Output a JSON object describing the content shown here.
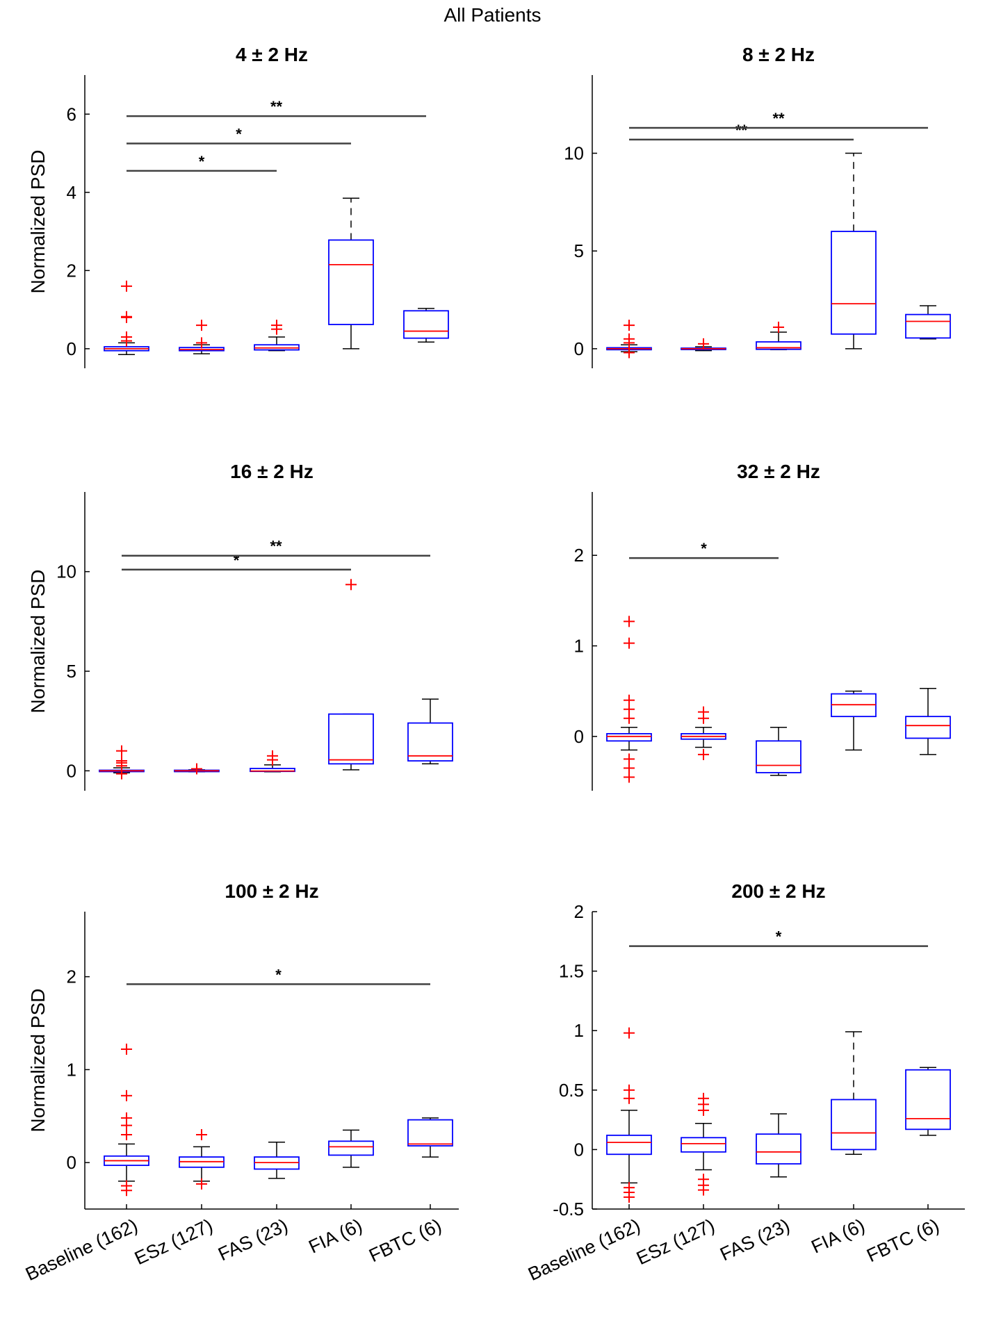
{
  "figure": {
    "title": "All Patients"
  },
  "chart_data": [
    {
      "type": "box",
      "title": "4 ± 2 Hz",
      "ylabel": "Normalized PSD",
      "ylim": [
        -0.5,
        7.0
      ],
      "yticks": [
        0,
        2,
        4,
        6
      ],
      "categories": [
        "Baseline (162)",
        "ESz (127)",
        "FAS (23)",
        "FIA (6)",
        "FBTC (6)"
      ],
      "boxes": [
        {
          "q1": -0.05,
          "median": 0.0,
          "q3": 0.05,
          "wlo": -0.15,
          "whi": 0.15,
          "outliers": [
            0.2,
            0.3,
            0.8,
            0.82,
            1.6
          ]
        },
        {
          "q1": -0.05,
          "median": -0.02,
          "q3": 0.03,
          "wlo": -0.13,
          "whi": 0.1,
          "outliers": [
            0.15,
            0.6
          ]
        },
        {
          "q1": -0.03,
          "median": 0.02,
          "q3": 0.1,
          "wlo": -0.05,
          "whi": 0.3,
          "outliers": [
            0.5,
            0.6
          ]
        },
        {
          "q1": 0.62,
          "median": 2.15,
          "q3": 2.78,
          "wlo": 0.0,
          "whi": 3.85,
          "outliers": []
        },
        {
          "q1": 0.27,
          "median": 0.45,
          "q3": 0.97,
          "wlo": 0.17,
          "whi": 1.03,
          "outliers": []
        }
      ],
      "significance": [
        {
          "from": 0,
          "to": 2,
          "y": 4.55,
          "label": "*"
        },
        {
          "from": 0,
          "to": 3,
          "y": 5.25,
          "label": "*"
        },
        {
          "from": 0,
          "to": 4,
          "y": 5.95,
          "label": "**"
        }
      ]
    },
    {
      "type": "box",
      "title": "8 ± 2 Hz",
      "ylabel": "",
      "ylim": [
        -1.0,
        14.0
      ],
      "yticks": [
        0,
        5,
        10
      ],
      "categories": [
        "Baseline (162)",
        "ESz (127)",
        "FAS (23)",
        "FIA (6)",
        "FBTC (6)"
      ],
      "boxes": [
        {
          "q1": -0.05,
          "median": 0.0,
          "q3": 0.05,
          "wlo": -0.15,
          "whi": 0.2,
          "outliers": [
            -0.2,
            0.3,
            0.5,
            1.2
          ]
        },
        {
          "q1": -0.03,
          "median": 0.0,
          "q3": 0.03,
          "wlo": -0.1,
          "whi": 0.1,
          "outliers": [
            0.25
          ]
        },
        {
          "q1": -0.03,
          "median": 0.05,
          "q3": 0.35,
          "wlo": -0.05,
          "whi": 0.85,
          "outliers": [
            1.1
          ]
        },
        {
          "q1": 0.75,
          "median": 2.3,
          "q3": 6.0,
          "wlo": 0.0,
          "whi": 10.0,
          "outliers": []
        },
        {
          "q1": 0.55,
          "median": 1.4,
          "q3": 1.75,
          "wlo": 0.5,
          "whi": 2.2,
          "outliers": []
        }
      ],
      "significance": [
        {
          "from": 0,
          "to": 3,
          "y": 10.7,
          "label": "**"
        },
        {
          "from": 0,
          "to": 4,
          "y": 11.3,
          "label": "**"
        }
      ]
    },
    {
      "type": "box",
      "title": "16 ± 2 Hz",
      "ylabel": "Normalized PSD",
      "ylim": [
        -1.0,
        14.0
      ],
      "yticks": [
        0,
        5,
        10
      ],
      "categories": [
        "Baseline (162)",
        "ESz (127)",
        "FAS (23)",
        "FIA (6)",
        "FBTC (6)"
      ],
      "boxes": [
        {
          "q1": -0.03,
          "median": 0.0,
          "q3": 0.03,
          "wlo": -0.1,
          "whi": 0.15,
          "outliers": [
            0.25,
            0.4,
            0.5,
            1.0,
            -0.15
          ]
        },
        {
          "q1": -0.03,
          "median": 0.0,
          "q3": 0.03,
          "wlo": -0.05,
          "whi": 0.05,
          "outliers": [
            0.1
          ]
        },
        {
          "q1": -0.03,
          "median": -0.01,
          "q3": 0.12,
          "wlo": -0.05,
          "whi": 0.3,
          "outliers": [
            0.55,
            0.75
          ]
        },
        {
          "q1": 0.35,
          "median": 0.55,
          "q3": 2.85,
          "wlo": 0.05,
          "whi": 2.85,
          "outliers": [
            9.35
          ]
        },
        {
          "q1": 0.5,
          "median": 0.75,
          "q3": 2.4,
          "wlo": 0.35,
          "whi": 3.6,
          "outliers": []
        }
      ],
      "significance": [
        {
          "from": 0,
          "to": 3,
          "y": 10.1,
          "label": "*"
        },
        {
          "from": 0,
          "to": 4,
          "y": 10.8,
          "label": "**"
        }
      ]
    },
    {
      "type": "box",
      "title": "32 ± 2 Hz",
      "ylabel": "",
      "ylim": [
        -0.6,
        2.7
      ],
      "yticks": [
        0,
        1,
        2
      ],
      "categories": [
        "Baseline (162)",
        "ESz (127)",
        "FAS (23)",
        "FIA (6)",
        "FBTC (6)"
      ],
      "boxes": [
        {
          "q1": -0.05,
          "median": 0.0,
          "q3": 0.03,
          "wlo": -0.15,
          "whi": 0.1,
          "outliers": [
            0.2,
            0.3,
            0.4,
            1.03,
            1.27,
            -0.25,
            -0.35,
            -0.45
          ]
        },
        {
          "q1": -0.03,
          "median": 0.0,
          "q3": 0.03,
          "wlo": -0.12,
          "whi": 0.1,
          "outliers": [
            0.2,
            0.27,
            -0.2
          ]
        },
        {
          "q1": -0.4,
          "median": -0.32,
          "q3": -0.05,
          "wlo": -0.43,
          "whi": 0.1,
          "outliers": []
        },
        {
          "q1": 0.22,
          "median": 0.35,
          "q3": 0.47,
          "wlo": -0.15,
          "whi": 0.5,
          "outliers": []
        },
        {
          "q1": -0.02,
          "median": 0.12,
          "q3": 0.22,
          "wlo": -0.2,
          "whi": 0.53,
          "outliers": []
        }
      ],
      "significance": [
        {
          "from": 0,
          "to": 2,
          "y": 1.97,
          "label": "*"
        }
      ]
    },
    {
      "type": "box",
      "title": "100 ± 2 Hz",
      "ylabel": "Normalized PSD",
      "ylim": [
        -0.5,
        2.7
      ],
      "yticks": [
        0,
        1,
        2
      ],
      "categories": [
        "Baseline (162)",
        "ESz (127)",
        "FAS (23)",
        "FIA (6)",
        "FBTC (6)"
      ],
      "boxes": [
        {
          "q1": -0.03,
          "median": 0.02,
          "q3": 0.07,
          "wlo": -0.2,
          "whi": 0.2,
          "outliers": [
            0.3,
            0.4,
            0.48,
            0.72,
            1.22,
            -0.25,
            -0.3
          ]
        },
        {
          "q1": -0.05,
          "median": 0.01,
          "q3": 0.06,
          "wlo": -0.2,
          "whi": 0.17,
          "outliers": [
            0.3,
            -0.23
          ]
        },
        {
          "q1": -0.07,
          "median": 0.0,
          "q3": 0.06,
          "wlo": -0.17,
          "whi": 0.22,
          "outliers": []
        },
        {
          "q1": 0.08,
          "median": 0.17,
          "q3": 0.23,
          "wlo": -0.05,
          "whi": 0.35,
          "outliers": []
        },
        {
          "q1": 0.18,
          "median": 0.2,
          "q3": 0.46,
          "wlo": 0.06,
          "whi": 0.48,
          "outliers": []
        }
      ],
      "significance": [
        {
          "from": 0,
          "to": 4,
          "y": 1.92,
          "label": "*"
        }
      ]
    },
    {
      "type": "box",
      "title": "200 ± 2 Hz",
      "ylabel": "",
      "ylim": [
        -0.5,
        2.0
      ],
      "yticks": [
        -0.5,
        0,
        0.5,
        1,
        1.5,
        2
      ],
      "categories": [
        "Baseline (162)",
        "ESz (127)",
        "FAS (23)",
        "FIA (6)",
        "FBTC (6)"
      ],
      "boxes": [
        {
          "q1": -0.04,
          "median": 0.06,
          "q3": 0.12,
          "wlo": -0.28,
          "whi": 0.33,
          "outliers": [
            0.43,
            0.5,
            0.98,
            -0.32,
            -0.36,
            -0.4
          ]
        },
        {
          "q1": -0.02,
          "median": 0.05,
          "q3": 0.1,
          "wlo": -0.17,
          "whi": 0.22,
          "outliers": [
            0.33,
            0.38,
            0.43,
            -0.25,
            -0.3,
            -0.34
          ]
        },
        {
          "q1": -0.12,
          "median": -0.02,
          "q3": 0.13,
          "wlo": -0.23,
          "whi": 0.3,
          "outliers": []
        },
        {
          "q1": 0.0,
          "median": 0.14,
          "q3": 0.42,
          "wlo": -0.04,
          "whi": 0.99,
          "outliers": []
        },
        {
          "q1": 0.17,
          "median": 0.26,
          "q3": 0.67,
          "wlo": 0.12,
          "whi": 0.69,
          "outliers": []
        }
      ],
      "significance": [
        {
          "from": 0,
          "to": 4,
          "y": 1.71,
          "label": "*"
        }
      ]
    }
  ]
}
